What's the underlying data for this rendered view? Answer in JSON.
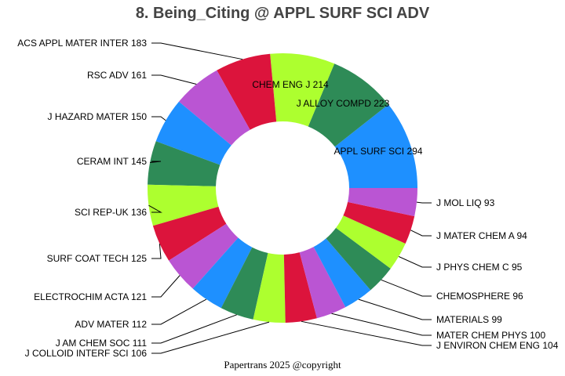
{
  "chart_data": {
    "type": "pie",
    "style": "donut",
    "title": "8. Being_Citing @ APPL SURF SCI ADV",
    "start": "3 o'clock, counterclockwise",
    "slices": [
      {
        "label": "APPL SURF SCI",
        "value": 294,
        "color": "#1E90FF"
      },
      {
        "label": "J ALLOY COMPD",
        "value": 223,
        "color": "#2E8B57"
      },
      {
        "label": "CHEM ENG J",
        "value": 214,
        "color": "#ADFF2F"
      },
      {
        "label": "ACS APPL MATER INTER",
        "value": 183,
        "color": "#DC143C"
      },
      {
        "label": "RSC ADV",
        "value": 161,
        "color": "#BA55D3"
      },
      {
        "label": "J HAZARD MATER",
        "value": 150,
        "color": "#1E90FF"
      },
      {
        "label": "CERAM INT",
        "value": 145,
        "color": "#2E8B57"
      },
      {
        "label": "SCI REP-UK",
        "value": 136,
        "color": "#ADFF2F"
      },
      {
        "label": "SURF COAT TECH",
        "value": 125,
        "color": "#DC143C"
      },
      {
        "label": "ELECTROCHIM ACTA",
        "value": 121,
        "color": "#BA55D3"
      },
      {
        "label": "ADV MATER",
        "value": 112,
        "color": "#1E90FF"
      },
      {
        "label": "J AM CHEM SOC",
        "value": 111,
        "color": "#2E8B57"
      },
      {
        "label": "J COLLOID INTERF SCI",
        "value": 106,
        "color": "#ADFF2F"
      },
      {
        "label": "J ENVIRON CHEM ENG",
        "value": 104,
        "color": "#DC143C"
      },
      {
        "label": "MATER CHEM PHYS",
        "value": 100,
        "color": "#BA55D3"
      },
      {
        "label": "MATERIALS",
        "value": 99,
        "color": "#1E90FF"
      },
      {
        "label": "CHEMOSPHERE",
        "value": 96,
        "color": "#2E8B57"
      },
      {
        "label": "J PHYS CHEM C",
        "value": 95,
        "color": "#ADFF2F"
      },
      {
        "label": "J MATER CHEM A",
        "value": 94,
        "color": "#DC143C"
      },
      {
        "label": "J MOL LIQ",
        "value": 93,
        "color": "#BA55D3"
      }
    ]
  },
  "footer": "Papertrans 2025 @copyright"
}
